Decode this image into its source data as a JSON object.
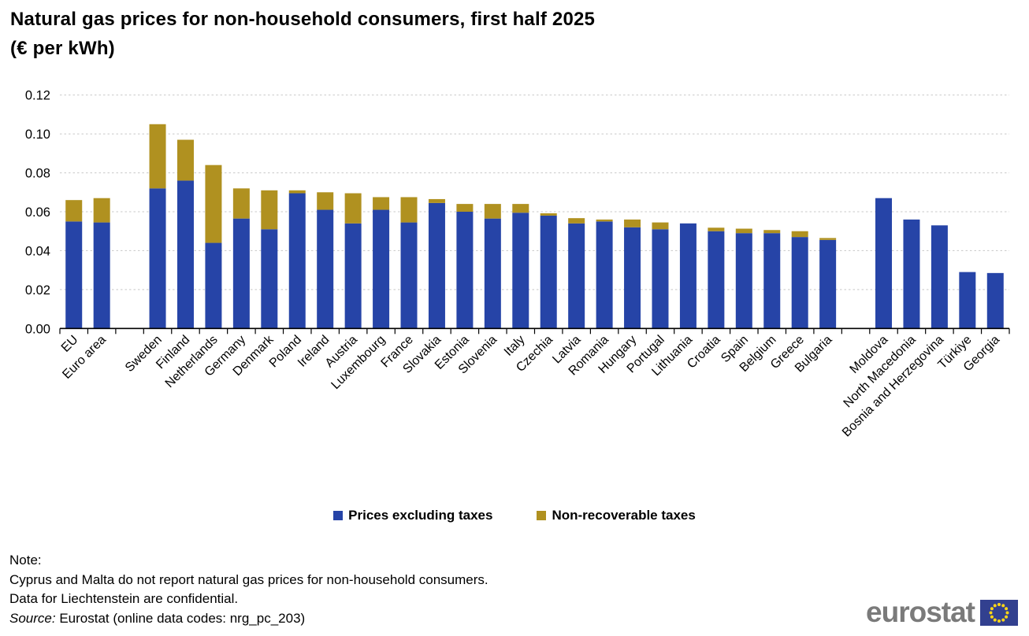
{
  "title": {
    "line1": "Natural gas prices for non-household consumers, first half 2025",
    "line2": "(€ per kWh)"
  },
  "chart_data": {
    "type": "bar",
    "stacked": true,
    "title": "Natural gas prices for non-household consumers, first half 2025 (€ per kWh)",
    "xlabel": "",
    "ylabel": "€ per kWh",
    "ylim": [
      0,
      0.12
    ],
    "ytick_step": 0.02,
    "ytick_labels": [
      "0.00",
      "0.02",
      "0.04",
      "0.06",
      "0.08",
      "0.10",
      "0.12"
    ],
    "grid": "horizontal-dashed",
    "legend_position": "bottom-center",
    "categories": [
      "EU",
      "Euro area",
      "Sweden",
      "Finland",
      "Netherlands",
      "Germany",
      "Denmark",
      "Poland",
      "Ireland",
      "Austria",
      "Luxembourg",
      "France",
      "Slovakia",
      "Estonia",
      "Slovenia",
      "Italy",
      "Czechia",
      "Latvia",
      "Romania",
      "Hungary",
      "Portugal",
      "Lithuania",
      "Croatia",
      "Spain",
      "Belgium",
      "Greece",
      "Bulgaria",
      "Moldova",
      "North Macedonia",
      "Bosnia and Herzegovina",
      "Türkiye",
      "Georgia"
    ],
    "gaps_after": [
      "Euro area",
      "Bulgaria"
    ],
    "series": [
      {
        "name": "Prices excluding taxes",
        "color": "#2644A7",
        "values": [
          0.055,
          0.0545,
          0.072,
          0.076,
          0.044,
          0.0565,
          0.051,
          0.0695,
          0.061,
          0.054,
          0.061,
          0.0545,
          0.0645,
          0.06,
          0.0565,
          0.0595,
          0.058,
          0.054,
          0.055,
          0.052,
          0.051,
          0.054,
          0.05,
          0.049,
          0.049,
          0.047,
          0.0455,
          0.067,
          0.056,
          0.053,
          0.029,
          0.0285
        ]
      },
      {
        "name": "Non-recoverable taxes",
        "color": "#B09120",
        "values": [
          0.011,
          0.0125,
          0.033,
          0.021,
          0.04,
          0.0155,
          0.02,
          0.0015,
          0.009,
          0.0155,
          0.0065,
          0.013,
          0.002,
          0.004,
          0.0075,
          0.0045,
          0.0012,
          0.0027,
          0.001,
          0.004,
          0.0035,
          0.0,
          0.0018,
          0.0023,
          0.0016,
          0.003,
          0.001,
          0.0,
          0.0,
          0.0,
          0.0,
          0.0
        ]
      }
    ]
  },
  "legend": {
    "items": [
      {
        "label": "Prices excluding taxes",
        "color": "#2644A7"
      },
      {
        "label": "Non-recoverable taxes",
        "color": "#B09120"
      }
    ]
  },
  "notes": {
    "heading": "Note:",
    "line1": "Cyprus and Malta do not report natural gas prices for non-household consumers.",
    "line2": "Data for Liechtenstein are confidential.",
    "source_label": "Source:",
    "source_text": " Eurostat (online data codes: nrg_pc_203)"
  },
  "logo": {
    "text": "eurostat",
    "text_color": "#7A7A7A",
    "flag_color": "#32408F",
    "star_color": "#FFD617"
  },
  "colors": {
    "gridline": "#c8c8c8",
    "axis": "#000000"
  }
}
